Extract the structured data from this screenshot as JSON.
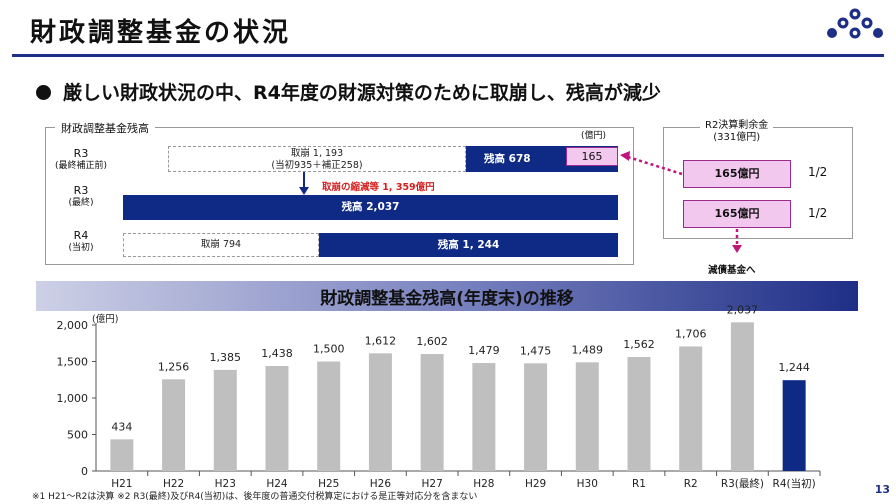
{
  "header": {
    "title": "財政調整基金の状況",
    "page_number": "13"
  },
  "headline": "厳しい財政状況の中、R4年度の財源対策のために取崩し、残高が減少",
  "balance_box": {
    "title": "財政調整基金残高",
    "unit": "(億円)",
    "rows": [
      {
        "label": "R3",
        "sub": "(最終補正前)",
        "withdraw": "取崩 1, 193",
        "withdraw_detail": "(当初935＋補正258)",
        "balance": "残高 678",
        "extra": "165"
      },
      {
        "label": "R3",
        "sub": "(最終)",
        "balance": "残高 2,037"
      },
      {
        "label": "R4",
        "sub": "(当初)",
        "withdraw": "取崩 794",
        "balance": "残高 1, 244"
      }
    ],
    "reduction_note": "取崩の縮減等 1, 359億円"
  },
  "surplus_box": {
    "title": "R2決算剰余金",
    "subtitle": "(331億円)",
    "items": [
      {
        "amount": "165億円",
        "fraction": "1/2"
      },
      {
        "amount": "165億円",
        "fraction": "1/2"
      }
    ],
    "destination": "減債基金へ"
  },
  "chart_data": {
    "type": "bar",
    "title": "財政調整基金残高(年度末)の推移",
    "ylabel": "(億円)",
    "categories": [
      "H21",
      "H22",
      "H23",
      "H24",
      "H25",
      "H26",
      "H27",
      "H28",
      "H29",
      "H30",
      "R1",
      "R2",
      "R3(最終)",
      "R4(当初)"
    ],
    "values": [
      434,
      1256,
      1385,
      1438,
      1500,
      1612,
      1602,
      1479,
      1475,
      1489,
      1562,
      1706,
      2037,
      1244
    ],
    "value_labels": [
      "434",
      "1,256",
      "1,385",
      "1,438",
      "1,500",
      "1,612",
      "1,602",
      "1,479",
      "1,475",
      "1,489",
      "1,562",
      "1,706",
      "2,037",
      "1,244"
    ],
    "ylim": [
      0,
      2000
    ],
    "yticks": [
      0,
      500,
      1000,
      1500,
      2000
    ],
    "ytick_labels": [
      "0",
      "500",
      "1,000",
      "1,500",
      "2,000"
    ],
    "grid": false,
    "colors": {
      "default": "#bfbfbf",
      "highlight": "#0e2a84"
    },
    "highlight_index": 13
  },
  "footnote": "※1 H21～R2は決算 ※2 R3(最終)及びR4(当初)は、後年度の普通交付税算定における是正等対応分を含まない",
  "colors": {
    "navy": "#0e2a84",
    "pink": "#f3c8ee",
    "magenta": "#c0147f",
    "red": "#d42020",
    "rule": "#1f2f86"
  }
}
